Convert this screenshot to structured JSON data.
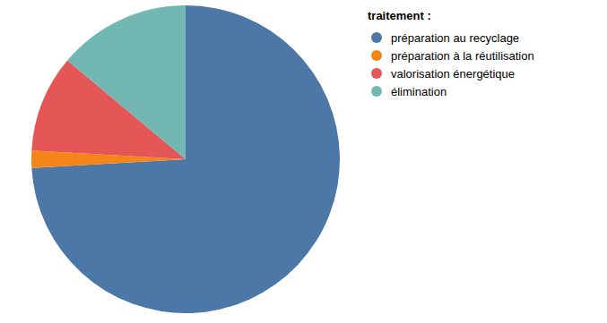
{
  "chart_data": {
    "type": "pie",
    "legend_title": "traitement :",
    "categories": [
      "préparation au recyclage",
      "préparation à la réutilisation",
      "valorisation énergétique",
      "élimination"
    ],
    "values": [
      74.1,
      1.8,
      10.2,
      13.9
    ],
    "colors": [
      "#4c78a8",
      "#f58518",
      "#e45756",
      "#72b7b2"
    ],
    "legend": "top-right"
  }
}
